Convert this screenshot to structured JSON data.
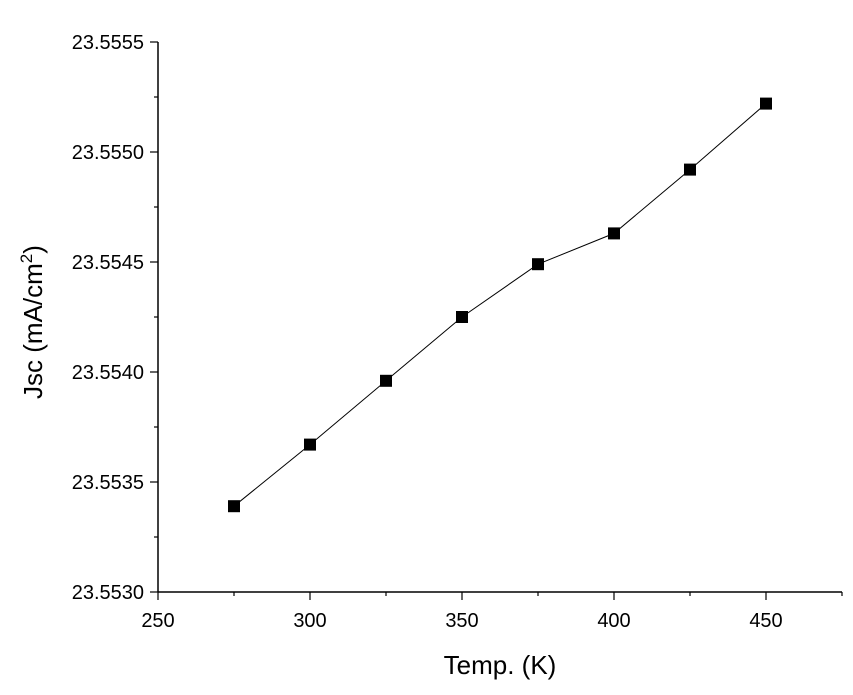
{
  "chart_data": {
    "type": "line",
    "title": "",
    "xlabel": "Temp. (K)",
    "ylabel_main": "Jsc (mA/cm",
    "ylabel_sup": "2",
    "ylabel_close": ")",
    "xlim": [
      250,
      475
    ],
    "ylim": [
      23.553,
      23.5555
    ],
    "x_ticks": [
      250,
      300,
      350,
      400,
      450
    ],
    "x_minor_ticks": [
      275,
      325,
      375,
      425,
      475
    ],
    "y_ticks": [
      "23.5530",
      "23.5535",
      "23.5540",
      "23.5545",
      "23.5550",
      "23.5555"
    ],
    "y_minor_ticks": [
      23.55325,
      23.55375,
      23.55425,
      23.55475,
      23.55525
    ],
    "grid": false,
    "series": [
      {
        "x": [
          275,
          300,
          325,
          350,
          375,
          400,
          425,
          450
        ],
        "values": [
          23.55339,
          23.55367,
          23.55396,
          23.55425,
          23.55449,
          23.55463,
          23.55492,
          23.55522
        ],
        "marker": "square",
        "color": "#000000"
      }
    ]
  }
}
